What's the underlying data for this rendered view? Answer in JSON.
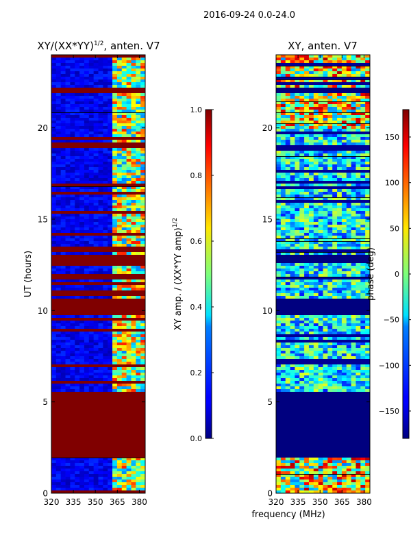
{
  "figure": {
    "suptitle": "2016-09-24 0.0-24.0",
    "xlabel_shared": "frequency (MHz)"
  },
  "chart_data": [
    {
      "type": "heatmap",
      "title": "XY/(XX*YY)",
      "title_sup": "1/2",
      "title_tail": ", anten. V7",
      "xlabel": "",
      "ylabel": "UT (hours)",
      "xlim": [
        320,
        384
      ],
      "ylim": [
        0,
        24
      ],
      "xticks": [
        320,
        335,
        350,
        365,
        380
      ],
      "yticks": [
        0,
        5,
        10,
        15,
        20
      ],
      "colormap": "jet",
      "masked_hour_bands": [
        [
          2.0,
          5.5
        ],
        [
          9.8,
          10.6
        ],
        [
          12.6,
          13.0
        ],
        [
          21.9,
          22.2
        ]
      ],
      "colorbar": {
        "label": "XY amp. / (XX*YY amp)",
        "label_sup": "1/2",
        "range": [
          0.0,
          1.0
        ],
        "ticks": [
          0.0,
          0.2,
          0.4,
          0.6,
          0.8,
          1.0
        ],
        "tick_labels": [
          "0.0",
          "0.2",
          "0.4",
          "0.6",
          "0.8",
          "1.0"
        ]
      }
    },
    {
      "type": "heatmap",
      "title": "XY, anten. V7",
      "xlabel": "frequency (MHz)",
      "ylabel": "",
      "xlim": [
        320,
        384
      ],
      "ylim": [
        0,
        24
      ],
      "xticks": [
        320,
        335,
        350,
        365,
        380
      ],
      "yticks": [
        0,
        5,
        10,
        15,
        20
      ],
      "colormap": "jet",
      "masked_hour_bands": [
        [
          2.0,
          5.5
        ],
        [
          9.8,
          10.6
        ],
        [
          12.6,
          13.0
        ],
        [
          21.9,
          22.2
        ]
      ],
      "colorbar": {
        "label": "phase (deg)",
        "range": [
          -180,
          180
        ],
        "ticks": [
          -150,
          -100,
          -50,
          0,
          50,
          100,
          150
        ],
        "tick_labels": [
          "−150",
          "−100",
          "−50",
          "0",
          "50",
          "100",
          "150"
        ]
      }
    }
  ]
}
